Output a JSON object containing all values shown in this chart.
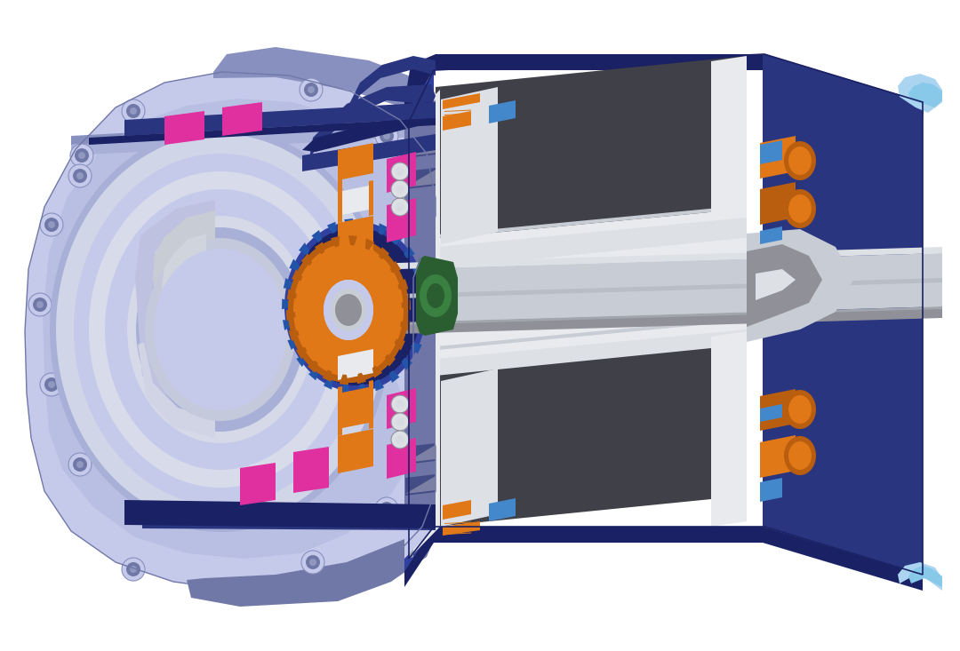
{
  "background_color": "#ffffff",
  "figsize": [
    10.8,
    7.33
  ],
  "dpi": 100,
  "colors": {
    "housing_light": "#c5caea",
    "housing_mid": "#a8b0d8",
    "housing_dark": "#8890c0",
    "housing_shadow": "#7078a8",
    "navy": "#2a3580",
    "navy_dark": "#1a2265",
    "navy_mid": "#3040a0",
    "orange": "#e07818",
    "orange_dark": "#b85e0e",
    "orange_bright": "#f08820",
    "magenta": "#e030a0",
    "blue_elec": "#4488cc",
    "blue_dark": "#2255aa",
    "green_dark": "#2a5e30",
    "green_mid": "#3a8040",
    "gray_coil": "#404048",
    "gray_dark": "#505058",
    "gray_mid": "#909098",
    "gray_light": "#b8bec8",
    "silver": "#c8cdd5",
    "silver_light": "#dde0e5",
    "silver_dark": "#a0a5ae",
    "white_part": "#e8eaee",
    "light_blue": "#88c8e8",
    "light_blue2": "#aad4f0"
  }
}
